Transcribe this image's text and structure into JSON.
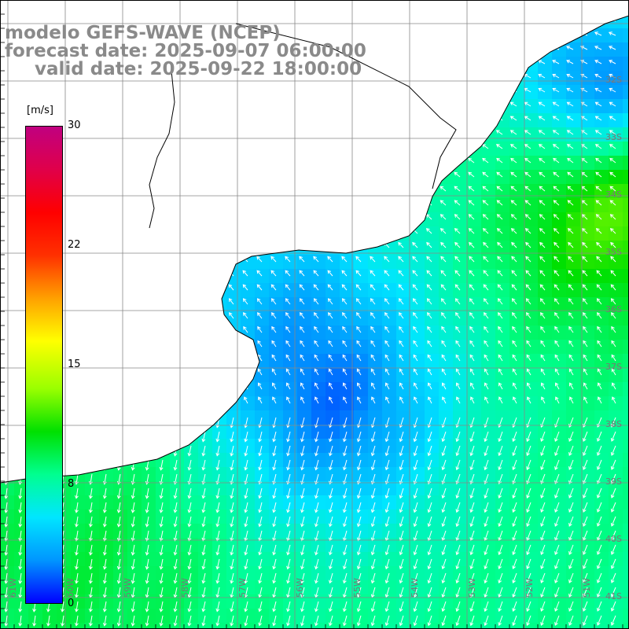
{
  "titles": {
    "line1": "modelo GEFS-WAVE (NCEP)",
    "line2": "forecast date: 2025-09-07 06:00:00",
    "line3": "valid date: 2025-09-22 18:00:00"
  },
  "colorbar": {
    "unit_label": "[m/s]",
    "tick_labels": [
      "30",
      "22",
      "15",
      "8",
      "0"
    ],
    "min": 0,
    "max": 30,
    "colors": [
      "#0000ff",
      "#0096ff",
      "#00e6ff",
      "#00ff90",
      "#00e000",
      "#9aff00",
      "#ffff00",
      "#ffa000",
      "#ff3000",
      "#ff0000",
      "#e0004a",
      "#c00080"
    ]
  },
  "map": {
    "variable": "wind speed",
    "lat_labels": [
      "32S",
      "33S",
      "34S",
      "35S",
      "36S",
      "37S",
      "38S",
      "39S",
      "40S",
      "41S"
    ],
    "lon_labels": [
      "61W",
      "60W",
      "59W",
      "58W",
      "57W",
      "56W",
      "55W",
      "54W",
      "53W",
      "52W",
      "51W"
    ],
    "land_color": "#ffffff",
    "grid_color": "#888888",
    "coast_color": "#000000",
    "arrow_color": "#ffffff"
  }
}
